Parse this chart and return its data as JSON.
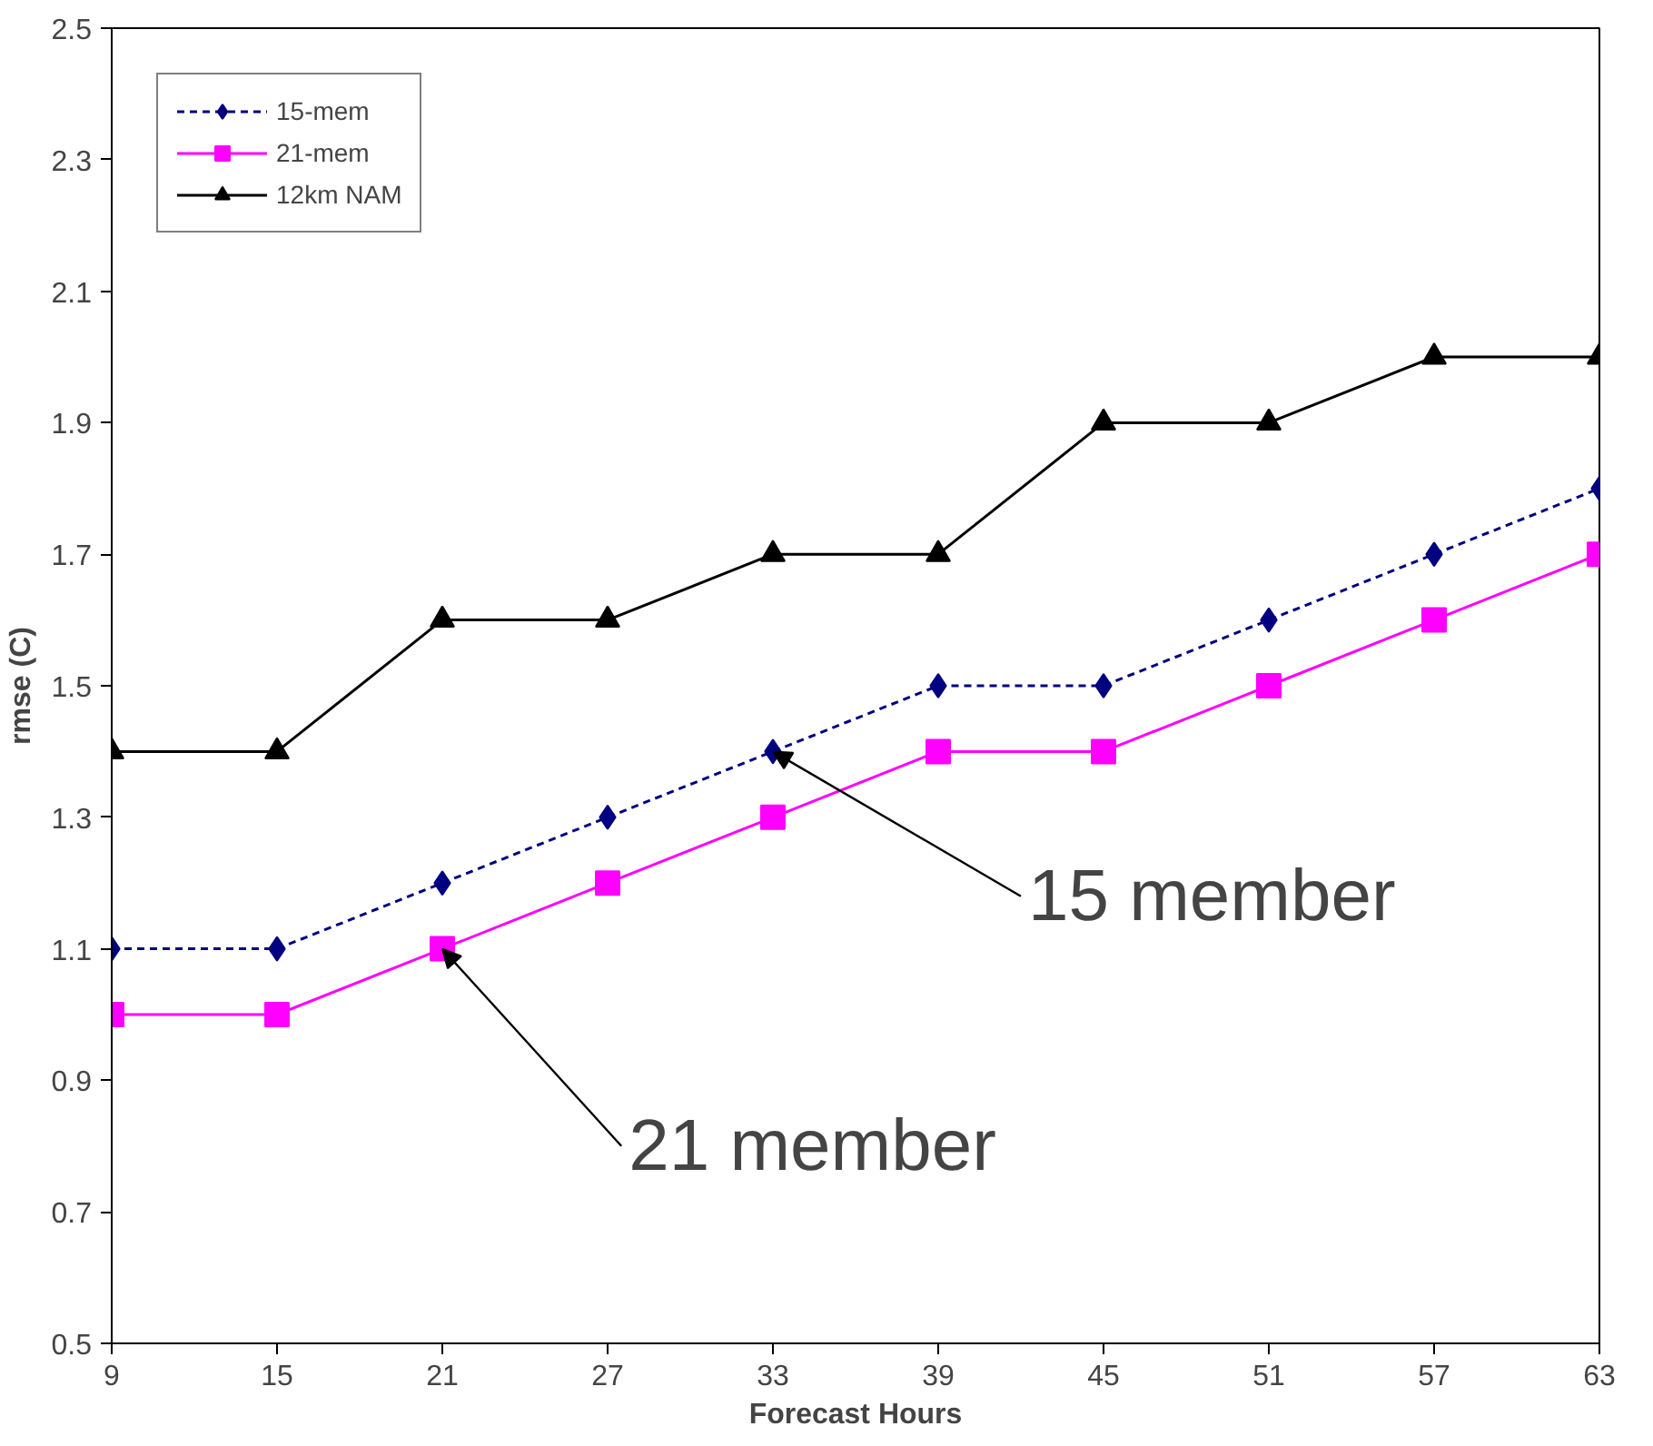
{
  "chart_data": {
    "type": "line",
    "xlabel": "Forecast Hours",
    "ylabel": "rmse (C)",
    "x": [
      9,
      15,
      21,
      27,
      33,
      39,
      45,
      51,
      57,
      63
    ],
    "xlim": [
      9,
      63
    ],
    "xticks": [
      9,
      15,
      21,
      27,
      33,
      39,
      45,
      51,
      57,
      63
    ],
    "ylim": [
      0.5,
      2.5
    ],
    "yticks": [
      0.5,
      0.7,
      0.9,
      1.1,
      1.3,
      1.5,
      1.7,
      1.9,
      2.1,
      2.3,
      2.5
    ],
    "grid": false,
    "legend": "top left",
    "series": [
      {
        "name": "15-mem",
        "color": "#000080",
        "marker": "diamond",
        "line_style": "dashed",
        "values": [
          1.1,
          1.1,
          1.2,
          1.3,
          1.4,
          1.5,
          1.5,
          1.6,
          1.7,
          1.8
        ]
      },
      {
        "name": "21-mem",
        "color": "#ff00ff",
        "marker": "square",
        "line_style": "solid",
        "values": [
          1.0,
          1.0,
          1.1,
          1.2,
          1.3,
          1.4,
          1.4,
          1.5,
          1.6,
          1.7
        ]
      },
      {
        "name": "12km NAM",
        "color": "#000000",
        "marker": "triangle",
        "line_style": "solid",
        "values": [
          1.4,
          1.4,
          1.6,
          1.6,
          1.7,
          1.7,
          1.9,
          1.9,
          2.0,
          2.0
        ]
      }
    ],
    "annotations": [
      {
        "text": "15 member",
        "x": 33,
        "y": 1.4
      },
      {
        "text": "21 member",
        "x": 21,
        "y": 1.1
      }
    ]
  }
}
